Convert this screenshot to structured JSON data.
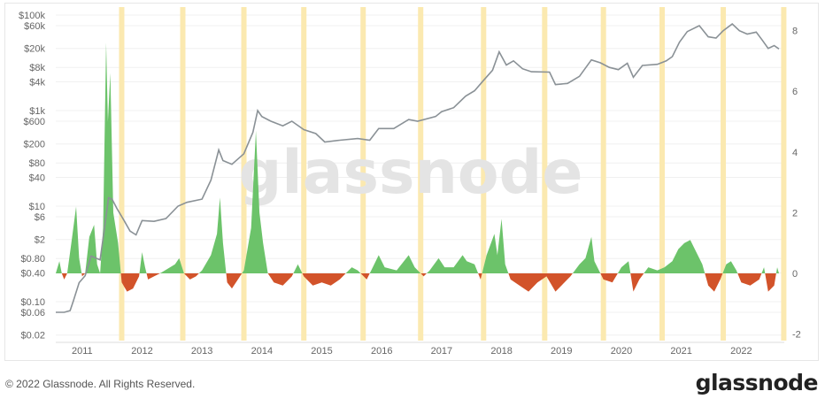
{
  "chart_data": {
    "type": "line",
    "title": "",
    "watermark": "glassnode",
    "xlim": [
      2010.56,
      2022.63
    ],
    "x_ticks": [
      "2011",
      "2012",
      "2013",
      "2014",
      "2015",
      "2016",
      "2017",
      "2018",
      "2019",
      "2020",
      "2021",
      "2022"
    ],
    "y_left": {
      "scale": "log",
      "range": [
        0.02,
        100000
      ],
      "tick_labels": [
        "$100k",
        "$60k",
        "$20k",
        "$8k",
        "$4k",
        "$1k",
        "$600",
        "$200",
        "$80",
        "$40",
        "$10",
        "$6",
        "$2",
        "$0.80",
        "$0.40",
        "$0.10",
        "$0.06",
        "$0.02"
      ],
      "tick_values": [
        100000,
        60000,
        20000,
        8000,
        4000,
        1000,
        600,
        200,
        80,
        40,
        10,
        6,
        2,
        0.8,
        0.4,
        0.1,
        0.06,
        0.02
      ]
    },
    "y_right": {
      "range": [
        -2,
        8.6
      ],
      "tick_labels": [
        "8",
        "6",
        "4",
        "2",
        "0",
        "-2"
      ],
      "tick_values": [
        8,
        6,
        4,
        2,
        0,
        -2
      ]
    },
    "grid": true,
    "colors": {
      "price": "#8a9196",
      "positive": "#6cc36a",
      "negative": "#d2532a",
      "band": "#fbe9b0"
    },
    "highlight_bands": [
      2011.66,
      2012.68,
      2013.7,
      2014.7,
      2015.69,
      2016.65,
      2017.7,
      2018.72,
      2019.7,
      2020.68,
      2021.7,
      2022.71
    ],
    "series": [
      {
        "axis": "left",
        "kind": "price",
        "points": [
          [
            2010.56,
            0.06
          ],
          [
            2010.7,
            0.06
          ],
          [
            2010.8,
            0.065
          ],
          [
            2010.85,
            0.1
          ],
          [
            2010.95,
            0.25
          ],
          [
            2011.05,
            0.35
          ],
          [
            2011.15,
            0.9
          ],
          [
            2011.3,
            0.75
          ],
          [
            2011.38,
            4
          ],
          [
            2011.44,
            15
          ],
          [
            2011.5,
            14
          ],
          [
            2011.58,
            9
          ],
          [
            2011.7,
            5
          ],
          [
            2011.8,
            3
          ],
          [
            2011.9,
            2.5
          ],
          [
            2012.0,
            5
          ],
          [
            2012.2,
            4.8
          ],
          [
            2012.4,
            5.5
          ],
          [
            2012.6,
            10
          ],
          [
            2012.75,
            12
          ],
          [
            2013.0,
            14
          ],
          [
            2013.15,
            35
          ],
          [
            2013.28,
            150
          ],
          [
            2013.35,
            90
          ],
          [
            2013.5,
            75
          ],
          [
            2013.7,
            125
          ],
          [
            2013.85,
            350
          ],
          [
            2013.93,
            1000
          ],
          [
            2014.0,
            750
          ],
          [
            2014.15,
            600
          ],
          [
            2014.35,
            480
          ],
          [
            2014.5,
            600
          ],
          [
            2014.7,
            400
          ],
          [
            2014.9,
            330
          ],
          [
            2015.05,
            220
          ],
          [
            2015.3,
            240
          ],
          [
            2015.6,
            260
          ],
          [
            2015.8,
            240
          ],
          [
            2015.95,
            420
          ],
          [
            2016.2,
            420
          ],
          [
            2016.45,
            650
          ],
          [
            2016.6,
            600
          ],
          [
            2016.9,
            750
          ],
          [
            2017.0,
            950
          ],
          [
            2017.2,
            1150
          ],
          [
            2017.4,
            2000
          ],
          [
            2017.55,
            2600
          ],
          [
            2017.7,
            4300
          ],
          [
            2017.85,
            7000
          ],
          [
            2017.96,
            17000
          ],
          [
            2018.08,
            9000
          ],
          [
            2018.2,
            11000
          ],
          [
            2018.35,
            7500
          ],
          [
            2018.5,
            6500
          ],
          [
            2018.8,
            6400
          ],
          [
            2018.9,
            3500
          ],
          [
            2019.1,
            3700
          ],
          [
            2019.3,
            5200
          ],
          [
            2019.5,
            11500
          ],
          [
            2019.65,
            10000
          ],
          [
            2019.8,
            8000
          ],
          [
            2019.95,
            7200
          ],
          [
            2020.1,
            9800
          ],
          [
            2020.2,
            5000
          ],
          [
            2020.35,
            8800
          ],
          [
            2020.6,
            9300
          ],
          [
            2020.75,
            11000
          ],
          [
            2020.85,
            13500
          ],
          [
            2020.97,
            27000
          ],
          [
            2021.1,
            45000
          ],
          [
            2021.3,
            60000
          ],
          [
            2021.45,
            35000
          ],
          [
            2021.58,
            33000
          ],
          [
            2021.7,
            47000
          ],
          [
            2021.85,
            65000
          ],
          [
            2021.97,
            47000
          ],
          [
            2022.1,
            40000
          ],
          [
            2022.25,
            44000
          ],
          [
            2022.35,
            30000
          ],
          [
            2022.45,
            20000
          ],
          [
            2022.55,
            23000
          ],
          [
            2022.63,
            19500
          ]
        ]
      },
      {
        "axis": "right",
        "kind": "oscillator",
        "points": [
          [
            2010.56,
            0
          ],
          [
            2010.62,
            0.4
          ],
          [
            2010.66,
            0
          ],
          [
            2010.7,
            -0.2
          ],
          [
            2010.75,
            0
          ],
          [
            2010.82,
            1
          ],
          [
            2010.9,
            2.2
          ],
          [
            2010.95,
            0.5
          ],
          [
            2011.0,
            -0.1
          ],
          [
            2011.05,
            0
          ],
          [
            2011.12,
            1.2
          ],
          [
            2011.2,
            1.6
          ],
          [
            2011.25,
            0.3
          ],
          [
            2011.3,
            0
          ],
          [
            2011.35,
            1.5
          ],
          [
            2011.4,
            7.6
          ],
          [
            2011.43,
            5
          ],
          [
            2011.47,
            6.6
          ],
          [
            2011.52,
            2
          ],
          [
            2011.6,
            1
          ],
          [
            2011.66,
            -0.3
          ],
          [
            2011.75,
            -0.6
          ],
          [
            2011.85,
            -0.5
          ],
          [
            2011.95,
            -0.1
          ],
          [
            2012.0,
            0.7
          ],
          [
            2012.05,
            0.2
          ],
          [
            2012.1,
            -0.2
          ],
          [
            2012.2,
            -0.1
          ],
          [
            2012.3,
            0
          ],
          [
            2012.55,
            0.3
          ],
          [
            2012.62,
            0.5
          ],
          [
            2012.7,
            0
          ],
          [
            2012.8,
            -0.2
          ],
          [
            2012.9,
            -0.1
          ],
          [
            2013.0,
            0.1
          ],
          [
            2013.15,
            0.6
          ],
          [
            2013.25,
            1.3
          ],
          [
            2013.3,
            2.5
          ],
          [
            2013.35,
            1
          ],
          [
            2013.42,
            -0.3
          ],
          [
            2013.5,
            -0.5
          ],
          [
            2013.6,
            -0.2
          ],
          [
            2013.7,
            0.1
          ],
          [
            2013.82,
            1.5
          ],
          [
            2013.9,
            4.7
          ],
          [
            2013.96,
            2
          ],
          [
            2014.02,
            1
          ],
          [
            2014.1,
            0
          ],
          [
            2014.2,
            -0.3
          ],
          [
            2014.35,
            -0.4
          ],
          [
            2014.5,
            -0.1
          ],
          [
            2014.6,
            0.3
          ],
          [
            2014.7,
            -0.1
          ],
          [
            2014.85,
            -0.4
          ],
          [
            2015.0,
            -0.3
          ],
          [
            2015.15,
            -0.4
          ],
          [
            2015.3,
            -0.2
          ],
          [
            2015.5,
            0.2
          ],
          [
            2015.6,
            0.1
          ],
          [
            2015.75,
            -0.2
          ],
          [
            2015.85,
            0.2
          ],
          [
            2015.95,
            0.6
          ],
          [
            2016.05,
            0.2
          ],
          [
            2016.25,
            0.1
          ],
          [
            2016.45,
            0.6
          ],
          [
            2016.55,
            0.2
          ],
          [
            2016.7,
            -0.1
          ],
          [
            2016.8,
            0.1
          ],
          [
            2016.95,
            0.5
          ],
          [
            2017.05,
            0.2
          ],
          [
            2017.2,
            0.2
          ],
          [
            2017.35,
            0.6
          ],
          [
            2017.42,
            0.4
          ],
          [
            2017.55,
            0.3
          ],
          [
            2017.65,
            -0.2
          ],
          [
            2017.75,
            0.6
          ],
          [
            2017.88,
            1.3
          ],
          [
            2017.93,
            0.6
          ],
          [
            2018.0,
            1.8
          ],
          [
            2018.06,
            0.3
          ],
          [
            2018.15,
            -0.2
          ],
          [
            2018.3,
            -0.4
          ],
          [
            2018.45,
            -0.6
          ],
          [
            2018.6,
            -0.3
          ],
          [
            2018.75,
            -0.1
          ],
          [
            2018.9,
            -0.6
          ],
          [
            2019.0,
            -0.4
          ],
          [
            2019.15,
            -0.1
          ],
          [
            2019.3,
            0.3
          ],
          [
            2019.4,
            0.5
          ],
          [
            2019.5,
            1.2
          ],
          [
            2019.55,
            0.4
          ],
          [
            2019.7,
            -0.2
          ],
          [
            2019.85,
            -0.3
          ],
          [
            2020.0,
            0.2
          ],
          [
            2020.12,
            0.4
          ],
          [
            2020.2,
            -0.6
          ],
          [
            2020.3,
            -0.2
          ],
          [
            2020.45,
            0.2
          ],
          [
            2020.6,
            0.1
          ],
          [
            2020.72,
            0.2
          ],
          [
            2020.85,
            0.4
          ],
          [
            2020.95,
            0.8
          ],
          [
            2021.05,
            1.0
          ],
          [
            2021.15,
            1.1
          ],
          [
            2021.25,
            0.7
          ],
          [
            2021.35,
            0.3
          ],
          [
            2021.45,
            -0.4
          ],
          [
            2021.55,
            -0.6
          ],
          [
            2021.65,
            -0.2
          ],
          [
            2021.75,
            0.3
          ],
          [
            2021.83,
            0.4
          ],
          [
            2021.92,
            0.1
          ],
          [
            2022.0,
            -0.3
          ],
          [
            2022.15,
            -0.4
          ],
          [
            2022.3,
            -0.2
          ],
          [
            2022.38,
            0.2
          ],
          [
            2022.45,
            -0.6
          ],
          [
            2022.55,
            -0.4
          ],
          [
            2022.6,
            0.2
          ],
          [
            2022.63,
            0
          ]
        ]
      }
    ]
  },
  "footer": {
    "copyright": "© 2022 Glassnode. All Rights Reserved.",
    "logo": "glassnode"
  }
}
